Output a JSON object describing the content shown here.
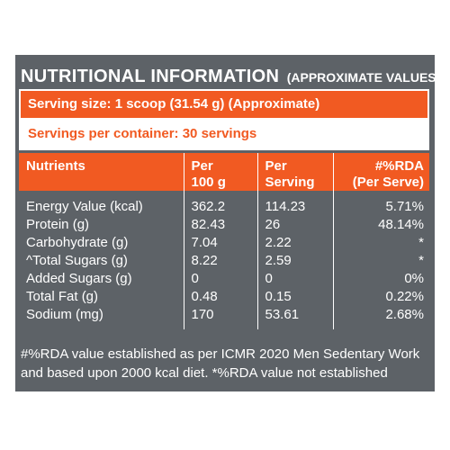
{
  "heading": {
    "title": "NUTRITIONAL INFORMATION",
    "subtitle": "(APPROXIMATE VALUES):"
  },
  "serving_size": "Serving size: 1 scoop (31.54 g) (Approximate)",
  "servings_per_container": "Servings per container: 30 servings",
  "table": {
    "headers": {
      "nutrients": "Nutrients",
      "per100_line1": "Per",
      "per100_line2": "100 g",
      "perserving_line1": "Per",
      "perserving_line2": "Serving",
      "rda_line1": "#%RDA",
      "rda_line2": "(Per Serve)"
    },
    "rows": [
      {
        "name": "Energy Value (kcal)",
        "per100": "362.2",
        "serving": "114.23",
        "rda": "5.71%"
      },
      {
        "name": "Protein (g)",
        "per100": "82.43",
        "serving": "26",
        "rda": "48.14%"
      },
      {
        "name": "Carbohydrate (g)",
        "per100": "7.04",
        "serving": "2.22",
        "rda": "*"
      },
      {
        "name": "^Total Sugars (g)",
        "per100": "8.22",
        "serving": "2.59",
        "rda": "*"
      },
      {
        "name": "Added Sugars (g)",
        "per100": "0",
        "serving": "0",
        "rda": "0%"
      },
      {
        "name": "Total Fat (g)",
        "per100": "0.48",
        "serving": "0.15",
        "rda": "0.22%"
      },
      {
        "name": "Sodium (mg)",
        "per100": "170",
        "serving": "53.61",
        "rda": "2.68%"
      }
    ]
  },
  "footnote": "#%RDA value established as per ICMR 2020 Men Sedentary Work and based upon 2000 kcal diet. *%RDA value not established",
  "colors": {
    "panel": "#5d6267",
    "accent": "#f15a22",
    "text_light": "#ffffff"
  }
}
